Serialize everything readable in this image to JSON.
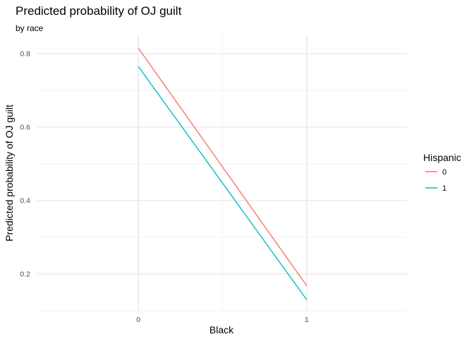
{
  "chart_data": {
    "type": "line",
    "title": "Predicted probability of OJ guilt",
    "subtitle": "by race",
    "xlabel": "Black",
    "ylabel": "Predicted probability of OJ guilt",
    "x": [
      0,
      1
    ],
    "x_tick_labels": [
      "0",
      "1"
    ],
    "xlim": [
      -0.6,
      1.6
    ],
    "ylim": [
      0.1,
      0.85
    ],
    "y_ticks": [
      0.2,
      0.4,
      0.6,
      0.8
    ],
    "y_tick_labels": [
      "0.2",
      "0.4",
      "0.6",
      "0.8"
    ],
    "grid": true,
    "legend": {
      "title": "Hispanic",
      "placement": "right"
    },
    "series": [
      {
        "name": "0",
        "values": [
          0.815,
          0.168
        ],
        "color": "#F8766D"
      },
      {
        "name": "1",
        "values": [
          0.765,
          0.13
        ],
        "color": "#00BFC4"
      }
    ]
  }
}
